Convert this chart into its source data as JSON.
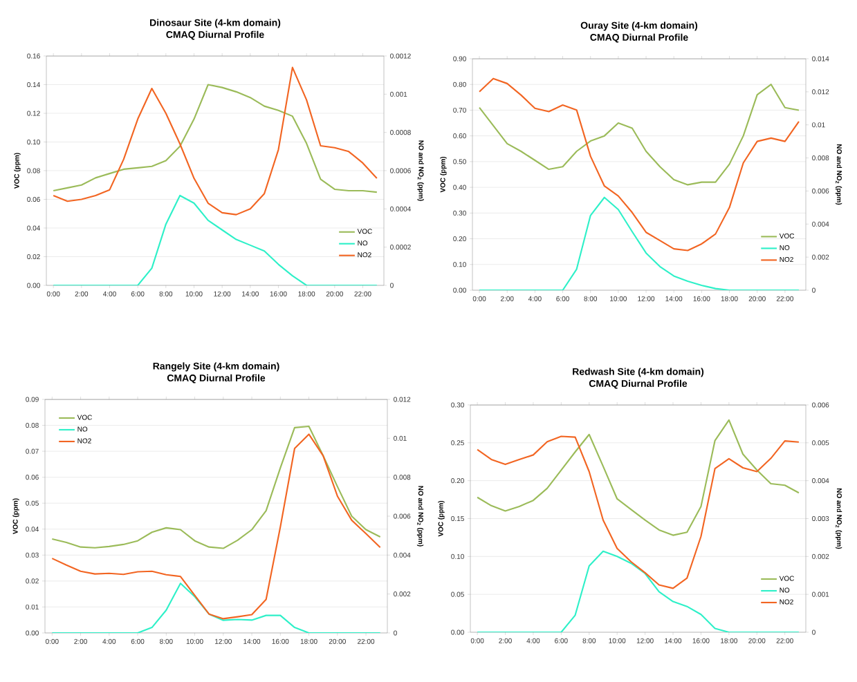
{
  "chart_data": [
    {
      "type": "line",
      "title": "Dinosaur Site (4-km domain)",
      "subtitle": "CMAQ Diurnal Profile",
      "ylabel": "VOC (ppm)",
      "y2label": "NO and NO$_{2}$ (ppm)",
      "x": [
        0,
        1,
        2,
        3,
        4,
        5,
        6,
        7,
        8,
        9,
        10,
        11,
        12,
        13,
        14,
        15,
        16,
        17,
        18,
        19,
        20,
        21,
        22,
        23
      ],
      "xlim": [
        -0.5,
        23.5
      ],
      "xticks": [
        {
          "value": 0,
          "label": "0:00"
        },
        {
          "value": 2,
          "label": "2:00"
        },
        {
          "value": 4,
          "label": "4:00"
        },
        {
          "value": 6,
          "label": "6:00"
        },
        {
          "value": 8,
          "label": "8:00"
        },
        {
          "value": 10,
          "label": "10:00"
        },
        {
          "value": 12,
          "label": "12:00"
        },
        {
          "value": 14,
          "label": "14:00"
        },
        {
          "value": 16,
          "label": "16:00"
        },
        {
          "value": 18,
          "label": "18:00"
        },
        {
          "value": 20,
          "label": "20:00"
        },
        {
          "value": 22,
          "label": "22:00"
        }
      ],
      "ylim": [
        0,
        0.16
      ],
      "yticks": [
        {
          "value": 0,
          "label": "0.00"
        },
        0.02,
        0.04,
        0.06,
        0.08,
        {
          "value": 0.1,
          "label": "0.10"
        },
        0.12,
        0.14,
        0.16
      ],
      "y2lim": [
        0,
        0.0012
      ],
      "y2ticks": [
        0,
        0.0002,
        0.0004,
        0.0006,
        0.0008,
        0.001,
        0.0012
      ],
      "grid": "y",
      "legend": "bottom right",
      "series": [
        {
          "name": "VOC",
          "color": "#9bbb59",
          "values": [
            0.066,
            0.068,
            0.07,
            0.075,
            0.078,
            0.081,
            0.082,
            0.083,
            0.087,
            0.097,
            0.116,
            0.14,
            0.138,
            0.135,
            0.131,
            0.125,
            0.122,
            0.118,
            0.099,
            0.074,
            0.067,
            0.066,
            0.066,
            0.065
          ]
        },
        {
          "name": "NO",
          "color": "#2ef0c8",
          "axis": "y2",
          "values": [
            0,
            0,
            0,
            0,
            0,
            0,
            0,
            9e-05,
            0.00032,
            0.00047,
            0.00043,
            0.00034,
            0.00029,
            0.00024,
            0.00021,
            0.00018,
            0.00011,
            5e-05,
            0,
            0,
            0,
            0,
            0,
            0
          ]
        },
        {
          "name": "NO2",
          "color": "#f26522",
          "axis": "y2",
          "values": [
            0.00047,
            0.00044,
            0.00045,
            0.00047,
            0.0005,
            0.00066,
            0.00087,
            0.00103,
            0.0009,
            0.00074,
            0.00056,
            0.00043,
            0.00038,
            0.00037,
            0.0004,
            0.00048,
            0.00071,
            0.00114,
            0.00097,
            0.00073,
            0.00072,
            0.0007,
            0.00064,
            0.00056
          ]
        }
      ]
    },
    {
      "type": "line",
      "title": "Ouray Site (4-km domain)",
      "subtitle": "CMAQ Diurnal Profile",
      "ylabel": "VOC (ppm)",
      "y2label": "NO and NO$_{2}$ (ppm)",
      "x": [
        0,
        1,
        2,
        3,
        4,
        5,
        6,
        7,
        8,
        9,
        10,
        11,
        12,
        13,
        14,
        15,
        16,
        17,
        18,
        19,
        20,
        21,
        22,
        23
      ],
      "xlim": [
        -0.5,
        23.5
      ],
      "xticks": [
        {
          "value": 0,
          "label": "0:00"
        },
        {
          "value": 2,
          "label": "2:00"
        },
        {
          "value": 4,
          "label": "4:00"
        },
        {
          "value": 6,
          "label": "6:00"
        },
        {
          "value": 8,
          "label": "8:00"
        },
        {
          "value": 10,
          "label": "10:00"
        },
        {
          "value": 12,
          "label": "12:00"
        },
        {
          "value": 14,
          "label": "14:00"
        },
        {
          "value": 16,
          "label": "16:00"
        },
        {
          "value": 18,
          "label": "18:00"
        },
        {
          "value": 20,
          "label": "20:00"
        },
        {
          "value": 22,
          "label": "22:00"
        }
      ],
      "ylim": [
        0,
        0.9
      ],
      "yticks": [
        {
          "value": 0,
          "label": "0.00"
        },
        {
          "value": 0.1,
          "label": "0.10"
        },
        {
          "value": 0.2,
          "label": "0.20"
        },
        {
          "value": 0.3,
          "label": "0.30"
        },
        {
          "value": 0.4,
          "label": "0.40"
        },
        {
          "value": 0.5,
          "label": "0.50"
        },
        {
          "value": 0.6,
          "label": "0.60"
        },
        {
          "value": 0.7,
          "label": "0.70"
        },
        {
          "value": 0.8,
          "label": "0.80"
        },
        {
          "value": 0.9,
          "label": "0.90"
        }
      ],
      "y2lim": [
        0,
        0.014
      ],
      "y2ticks": [
        0,
        0.002,
        0.004,
        0.006,
        0.008,
        0.01,
        0.012,
        0.014
      ],
      "grid": "y",
      "legend": "bottom right",
      "series": [
        {
          "name": "VOC",
          "color": "#9bbb59",
          "values": [
            0.71,
            0.64,
            0.57,
            0.54,
            0.505,
            0.47,
            0.48,
            0.54,
            0.58,
            0.6,
            0.65,
            0.63,
            0.54,
            0.48,
            0.43,
            0.41,
            0.42,
            0.42,
            0.49,
            0.6,
            0.76,
            0.8,
            0.71,
            0.7
          ]
        },
        {
          "name": "NO",
          "color": "#2ef0c8",
          "axis": "y2",
          "values": [
            0,
            0,
            0,
            0,
            0,
            0,
            0,
            0.00127,
            0.00452,
            0.00561,
            0.00488,
            0.00354,
            0.00225,
            0.00143,
            0.00086,
            0.00054,
            0.00029,
            0.0001,
            0,
            0,
            0,
            0,
            0,
            0
          ]
        },
        {
          "name": "NO2",
          "color": "#f26522",
          "axis": "y2",
          "values": [
            0.012,
            0.0128,
            0.0125,
            0.0118,
            0.011,
            0.0108,
            0.0112,
            0.0109,
            0.0081,
            0.0063,
            0.0057,
            0.0047,
            0.0035,
            0.003,
            0.0025,
            0.0024,
            0.0028,
            0.0034,
            0.005,
            0.0077,
            0.009,
            0.0092,
            0.009,
            0.0102
          ]
        }
      ]
    },
    {
      "type": "line",
      "title": "Rangely Site (4-km domain)",
      "subtitle": "CMAQ Diurnal Profile",
      "ylabel": "VOC (ppm)",
      "y2label": "NO and NO$_{2}$ (ppm)",
      "x": [
        0,
        1,
        2,
        3,
        4,
        5,
        6,
        7,
        8,
        9,
        10,
        11,
        12,
        13,
        14,
        15,
        16,
        17,
        18,
        19,
        20,
        21,
        22,
        23
      ],
      "xlim": [
        -0.5,
        23.5
      ],
      "xticks": [
        {
          "value": 0,
          "label": "0:00"
        },
        {
          "value": 2,
          "label": "2:00"
        },
        {
          "value": 4,
          "label": "4:00"
        },
        {
          "value": 6,
          "label": "6:00"
        },
        {
          "value": 8,
          "label": "8:00"
        },
        {
          "value": 10,
          "label": "10:00"
        },
        {
          "value": 12,
          "label": "12:00"
        },
        {
          "value": 14,
          "label": "14:00"
        },
        {
          "value": 16,
          "label": "16:00"
        },
        {
          "value": 18,
          "label": "18:00"
        },
        {
          "value": 20,
          "label": "20:00"
        },
        {
          "value": 22,
          "label": "22:00"
        }
      ],
      "ylim": [
        0,
        0.09
      ],
      "yticks": [
        {
          "value": 0,
          "label": "0.00"
        },
        0.01,
        0.02,
        0.03,
        0.04,
        0.05,
        0.06,
        0.07,
        0.08,
        0.09
      ],
      "y2lim": [
        0,
        0.012
      ],
      "y2ticks": [
        0,
        0.002,
        0.004,
        0.006,
        0.008,
        0.01,
        0.012
      ],
      "grid": "y",
      "legend": "top left",
      "series": [
        {
          "name": "VOC",
          "color": "#9bbb59",
          "values": [
            0.0362,
            0.0349,
            0.0331,
            0.0328,
            0.0333,
            0.0341,
            0.0355,
            0.0388,
            0.0405,
            0.0398,
            0.0355,
            0.0331,
            0.0326,
            0.0357,
            0.0398,
            0.0471,
            0.0636,
            0.0791,
            0.0796,
            0.0683,
            0.0564,
            0.045,
            0.0398,
            0.037
          ]
        },
        {
          "name": "NO",
          "color": "#2ef0c8",
          "axis": "y2",
          "values": [
            0,
            0,
            0,
            0,
            0,
            0,
            0,
            0.00028,
            0.00117,
            0.00255,
            0.00186,
            0.00097,
            0.00065,
            0.00069,
            0.00066,
            0.0009,
            0.0009,
            0.00028,
            0,
            0,
            0,
            0,
            0,
            0
          ]
        },
        {
          "name": "NO2",
          "color": "#f26522",
          "axis": "y2",
          "values": [
            0.00383,
            0.00349,
            0.00317,
            0.00303,
            0.00306,
            0.00301,
            0.00314,
            0.00317,
            0.00299,
            0.0029,
            0.00193,
            0.00097,
            0.00073,
            0.00083,
            0.00094,
            0.00172,
            0.00545,
            0.00948,
            0.01021,
            0.0091,
            0.00703,
            0.00579,
            0.0051,
            0.00439
          ]
        }
      ]
    },
    {
      "type": "line",
      "title": "Redwash Site (4-km domain)",
      "subtitle": "CMAQ Diurnal Profile",
      "ylabel": "VOC (ppm)",
      "y2label": "NO and NO$_{2}$ (ppm)",
      "x": [
        0,
        1,
        2,
        3,
        4,
        5,
        6,
        7,
        8,
        9,
        10,
        11,
        12,
        13,
        14,
        15,
        16,
        17,
        18,
        19,
        20,
        21,
        22,
        23
      ],
      "xlim": [
        -0.5,
        23.5
      ],
      "xticks": [
        {
          "value": 0,
          "label": "0:00"
        },
        {
          "value": 2,
          "label": "2:00"
        },
        {
          "value": 4,
          "label": "4:00"
        },
        {
          "value": 6,
          "label": "6:00"
        },
        {
          "value": 8,
          "label": "8:00"
        },
        {
          "value": 10,
          "label": "10:00"
        },
        {
          "value": 12,
          "label": "12:00"
        },
        {
          "value": 14,
          "label": "14:00"
        },
        {
          "value": 16,
          "label": "16:00"
        },
        {
          "value": 18,
          "label": "18:00"
        },
        {
          "value": 20,
          "label": "20:00"
        },
        {
          "value": 22,
          "label": "22:00"
        }
      ],
      "ylim": [
        0,
        0.3
      ],
      "yticks": [
        {
          "value": 0,
          "label": "0.00"
        },
        0.05,
        {
          "value": 0.1,
          "label": "0.10"
        },
        0.15,
        {
          "value": 0.2,
          "label": "0.20"
        },
        0.25,
        {
          "value": 0.3,
          "label": "0.30"
        }
      ],
      "y2lim": [
        0,
        0.006
      ],
      "y2ticks": [
        0,
        0.001,
        0.002,
        0.003,
        0.004,
        0.005,
        0.006
      ],
      "grid": "y",
      "legend": "bottom right",
      "series": [
        {
          "name": "VOC",
          "color": "#9bbb59",
          "values": [
            0.178,
            0.167,
            0.16,
            0.166,
            0.174,
            0.19,
            0.214,
            0.238,
            0.261,
            0.219,
            0.176,
            0.162,
            0.148,
            0.135,
            0.128,
            0.132,
            0.166,
            0.253,
            0.28,
            0.235,
            0.214,
            0.196,
            0.194,
            0.184
          ]
        },
        {
          "name": "NO",
          "color": "#2ef0c8",
          "axis": "y2",
          "values": [
            0,
            0,
            0,
            0,
            0,
            0,
            0,
            0.00045,
            0.00175,
            0.00214,
            0.002,
            0.00182,
            0.00155,
            0.00107,
            0.00081,
            0.00068,
            0.00047,
            0.0001,
            0,
            0,
            0,
            0,
            0,
            0
          ]
        },
        {
          "name": "NO2",
          "color": "#f26522",
          "axis": "y2",
          "values": [
            0.00482,
            0.00456,
            0.00443,
            0.00456,
            0.00468,
            0.00503,
            0.00517,
            0.00515,
            0.00424,
            0.00296,
            0.00221,
            0.00186,
            0.00157,
            0.00125,
            0.00116,
            0.00143,
            0.00253,
            0.00432,
            0.00458,
            0.00434,
            0.00424,
            0.00459,
            0.00505,
            0.00502
          ]
        }
      ]
    }
  ]
}
